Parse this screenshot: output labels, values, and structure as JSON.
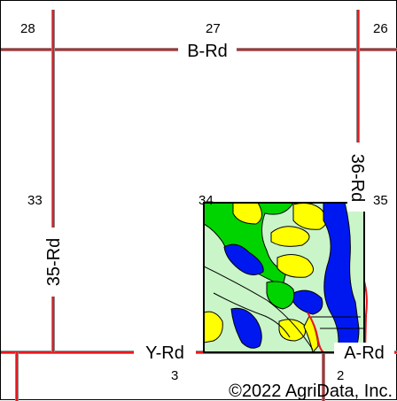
{
  "map": {
    "roads": {
      "b_rd": "B-Rd",
      "y_rd": "Y-Rd",
      "a_rd": "A-Rd",
      "rd_35": "35-Rd",
      "rd_36": "36-Rd"
    },
    "sections": [
      "28",
      "27",
      "26",
      "33",
      "34",
      "35",
      "3",
      "2"
    ],
    "copyright": "©2022 AgriData, Inc.",
    "colors": {
      "road": "#e8191f",
      "road_shadow": "#8a8a8a",
      "soil_light_green": "#c9f5c9",
      "soil_green": "#00d400",
      "soil_blue": "#0018f0",
      "soil_yellow": "#ffff00",
      "field_outline": "#000000"
    }
  }
}
